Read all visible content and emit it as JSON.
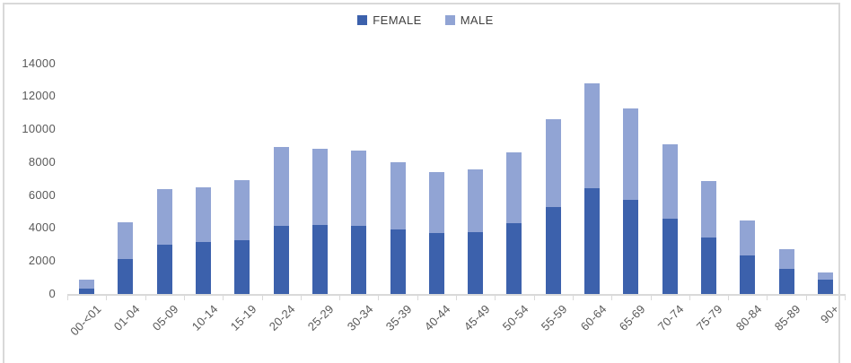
{
  "chart_data": {
    "type": "bar",
    "stacked": true,
    "title": "",
    "xlabel": "",
    "ylabel": "",
    "categories": [
      "00-<01",
      "01-04",
      "05-09",
      "10-14",
      "15-19",
      "20-24",
      "25-29",
      "30-34",
      "35-39",
      "40-44",
      "45-49",
      "50-54",
      "55-59",
      "60-64",
      "65-69",
      "70-74",
      "75-79",
      "80-84",
      "85-89",
      "90+"
    ],
    "series": [
      {
        "name": "FEMALE",
        "color": "#3C61AC",
        "values": [
          350,
          2100,
          3000,
          3150,
          3250,
          4150,
          4200,
          4150,
          3900,
          3700,
          3750,
          4300,
          5300,
          6400,
          5700,
          4550,
          3450,
          2350,
          1500,
          850
        ]
      },
      {
        "name": "MALE",
        "color": "#91A4D4",
        "values": [
          500,
          2250,
          3350,
          3350,
          3650,
          4750,
          4600,
          4550,
          4100,
          3700,
          3800,
          4300,
          5300,
          6400,
          5550,
          4550,
          3400,
          2100,
          1200,
          450
        ]
      }
    ],
    "ylim": [
      0,
      14000
    ],
    "yticks": [
      0,
      2000,
      4000,
      6000,
      8000,
      10000,
      12000,
      14000
    ],
    "grid": false,
    "legend_position": "top-center"
  },
  "colors": {
    "female": "#3C61AC",
    "male": "#91A4D4",
    "axis_line": "#D9D9D9",
    "axis_text": "#595959",
    "legend_text": "#404040",
    "frame_border": "#D9D9D9",
    "background": "#FFFFFF"
  }
}
